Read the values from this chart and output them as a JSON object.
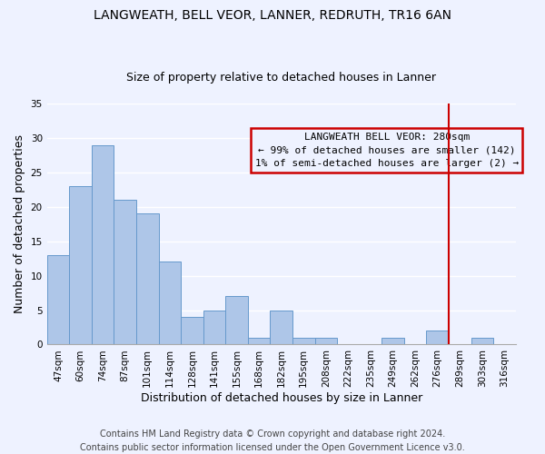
{
  "title": "LANGWEATH, BELL VEOR, LANNER, REDRUTH, TR16 6AN",
  "subtitle": "Size of property relative to detached houses in Lanner",
  "xlabel": "Distribution of detached houses by size in Lanner",
  "ylabel": "Number of detached properties",
  "categories": [
    "47sqm",
    "60sqm",
    "74sqm",
    "87sqm",
    "101sqm",
    "114sqm",
    "128sqm",
    "141sqm",
    "155sqm",
    "168sqm",
    "182sqm",
    "195sqm",
    "208sqm",
    "222sqm",
    "235sqm",
    "249sqm",
    "262sqm",
    "276sqm",
    "289sqm",
    "303sqm",
    "316sqm"
  ],
  "values": [
    13,
    23,
    29,
    21,
    19,
    12,
    4,
    5,
    7,
    1,
    5,
    1,
    1,
    0,
    0,
    1,
    0,
    2,
    0,
    1,
    0
  ],
  "bar_color": "#aec6e8",
  "bar_edge_color": "#6699cc",
  "ylim": [
    0,
    35
  ],
  "yticks": [
    0,
    5,
    10,
    15,
    20,
    25,
    30,
    35
  ],
  "marker_label": "LANGWEATH BELL VEOR: 280sqm",
  "marker_line_color": "#cc0000",
  "annotation_line1": "← 99% of detached houses are smaller (142)",
  "annotation_line2": "1% of semi-detached houses are larger (2) →",
  "footnote1": "Contains HM Land Registry data © Crown copyright and database right 2024.",
  "footnote2": "Contains public sector information licensed under the Open Government Licence v3.0.",
  "background_color": "#eef2ff",
  "grid_color": "#ffffff",
  "title_fontsize": 10,
  "subtitle_fontsize": 9,
  "axis_label_fontsize": 9,
  "tick_fontsize": 7.5,
  "annotation_fontsize": 8,
  "footnote_fontsize": 7
}
